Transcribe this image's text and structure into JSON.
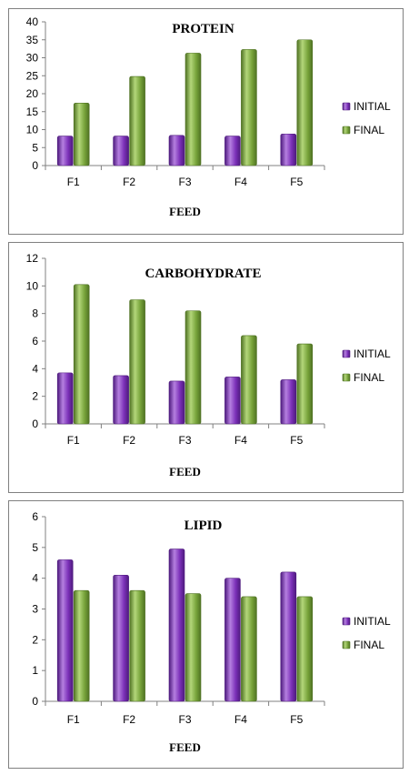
{
  "colors": {
    "initial": "#7B30B8",
    "initial_light": "#B57FE0",
    "initial_dark": "#4E1A7E",
    "final": "#77A33A",
    "final_light": "#B3D67A",
    "final_dark": "#4F7223"
  },
  "chart_data": [
    {
      "type": "bar",
      "title": "PROTEIN",
      "xlabel": "FEED",
      "ylabel": "",
      "categories": [
        "F1",
        "F2",
        "F3",
        "F4",
        "F5"
      ],
      "ylim": [
        0,
        40
      ],
      "yticks": [
        0,
        5,
        10,
        15,
        20,
        25,
        30,
        35,
        40
      ],
      "series": [
        {
          "name": "INITIAL",
          "values": [
            8.2,
            8.2,
            8.4,
            8.2,
            8.8
          ]
        },
        {
          "name": "FINAL",
          "values": [
            17.4,
            24.8,
            31.3,
            32.3,
            35.0
          ]
        }
      ],
      "legend": "right",
      "grid": false
    },
    {
      "type": "bar",
      "title": "CARBOHYDRATE",
      "xlabel": "FEED",
      "ylabel": "",
      "categories": [
        "F1",
        "F2",
        "F3",
        "F4",
        "F5"
      ],
      "ylim": [
        0,
        12
      ],
      "yticks": [
        0,
        2,
        4,
        6,
        8,
        10,
        12
      ],
      "series": [
        {
          "name": "INITIAL",
          "values": [
            3.7,
            3.5,
            3.1,
            3.4,
            3.2
          ]
        },
        {
          "name": "FINAL",
          "values": [
            10.1,
            9.0,
            8.2,
            6.4,
            5.8
          ]
        }
      ],
      "legend": "right",
      "grid": false
    },
    {
      "type": "bar",
      "title": "LIPID",
      "xlabel": "FEED",
      "ylabel": "",
      "categories": [
        "F1",
        "F2",
        "F3",
        "F4",
        "F5"
      ],
      "ylim": [
        0,
        6
      ],
      "yticks": [
        0,
        1,
        2,
        3,
        4,
        5,
        6
      ],
      "series": [
        {
          "name": "INITIAL",
          "values": [
            4.6,
            4.1,
            4.95,
            4.0,
            4.2
          ]
        },
        {
          "name": "FINAL",
          "values": [
            3.6,
            3.6,
            3.5,
            3.4,
            3.4
          ]
        }
      ],
      "legend": "right",
      "grid": false
    }
  ]
}
